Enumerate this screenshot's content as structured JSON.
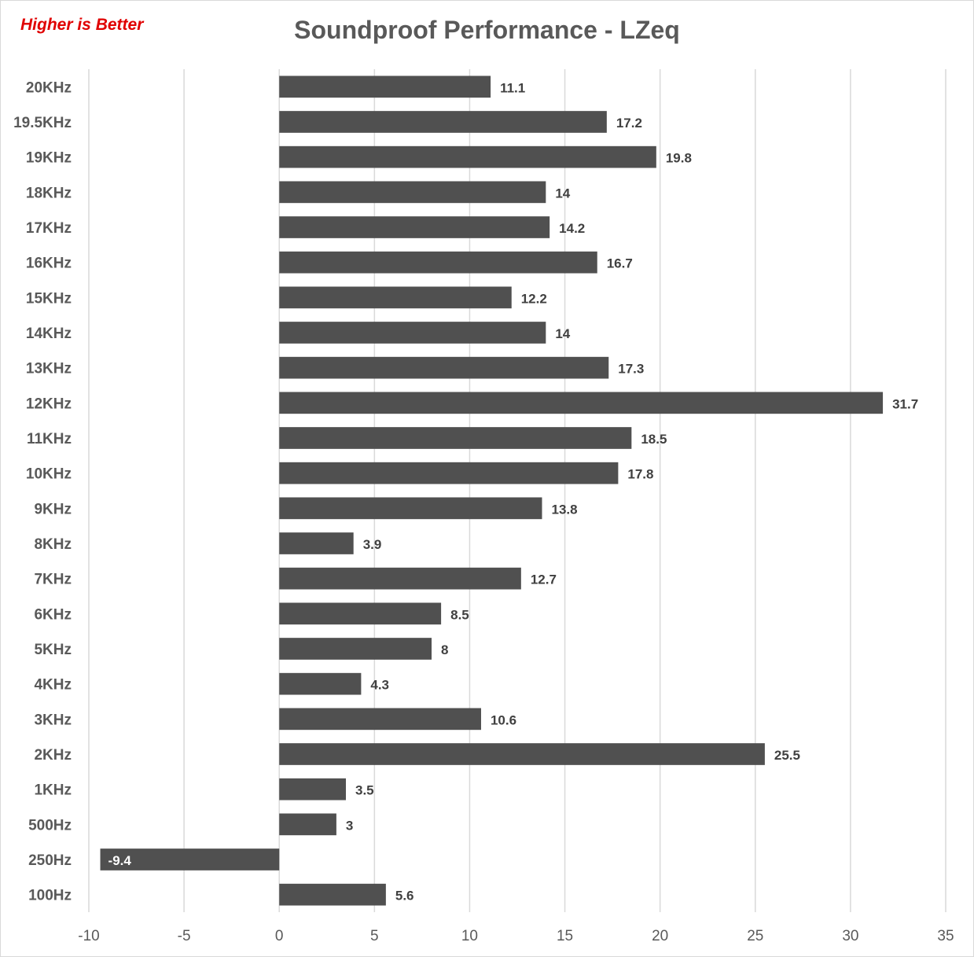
{
  "note": "Higher is Better",
  "chart_data": {
    "type": "bar",
    "orientation": "horizontal",
    "title": "Soundproof Performance - LZeq",
    "categories": [
      "20KHz",
      "19.5KHz",
      "19KHz",
      "18KHz",
      "17KHz",
      "16KHz",
      "15KHz",
      "14KHz",
      "13KHz",
      "12KHz",
      "11KHz",
      "10KHz",
      "9KHz",
      "8KHz",
      "7KHz",
      "6KHz",
      "5KHz",
      "4KHz",
      "3KHz",
      "2KHz",
      "1KHz",
      "500Hz",
      "250Hz",
      "100Hz"
    ],
    "values": [
      11.1,
      17.2,
      19.8,
      14,
      14.2,
      16.7,
      12.2,
      14,
      17.3,
      31.7,
      18.5,
      17.8,
      13.8,
      3.9,
      12.7,
      8.5,
      8,
      4.3,
      10.6,
      25.5,
      3.5,
      3,
      -9.4,
      5.6
    ],
    "xlim": [
      -10,
      35
    ],
    "xticks": [
      -10,
      -5,
      0,
      5,
      10,
      15,
      20,
      25,
      30,
      35
    ],
    "xlabel": "",
    "ylabel": "",
    "grid": true,
    "legend": "none",
    "bar_color": "#505050",
    "grid_color": "#d9d9d9"
  }
}
